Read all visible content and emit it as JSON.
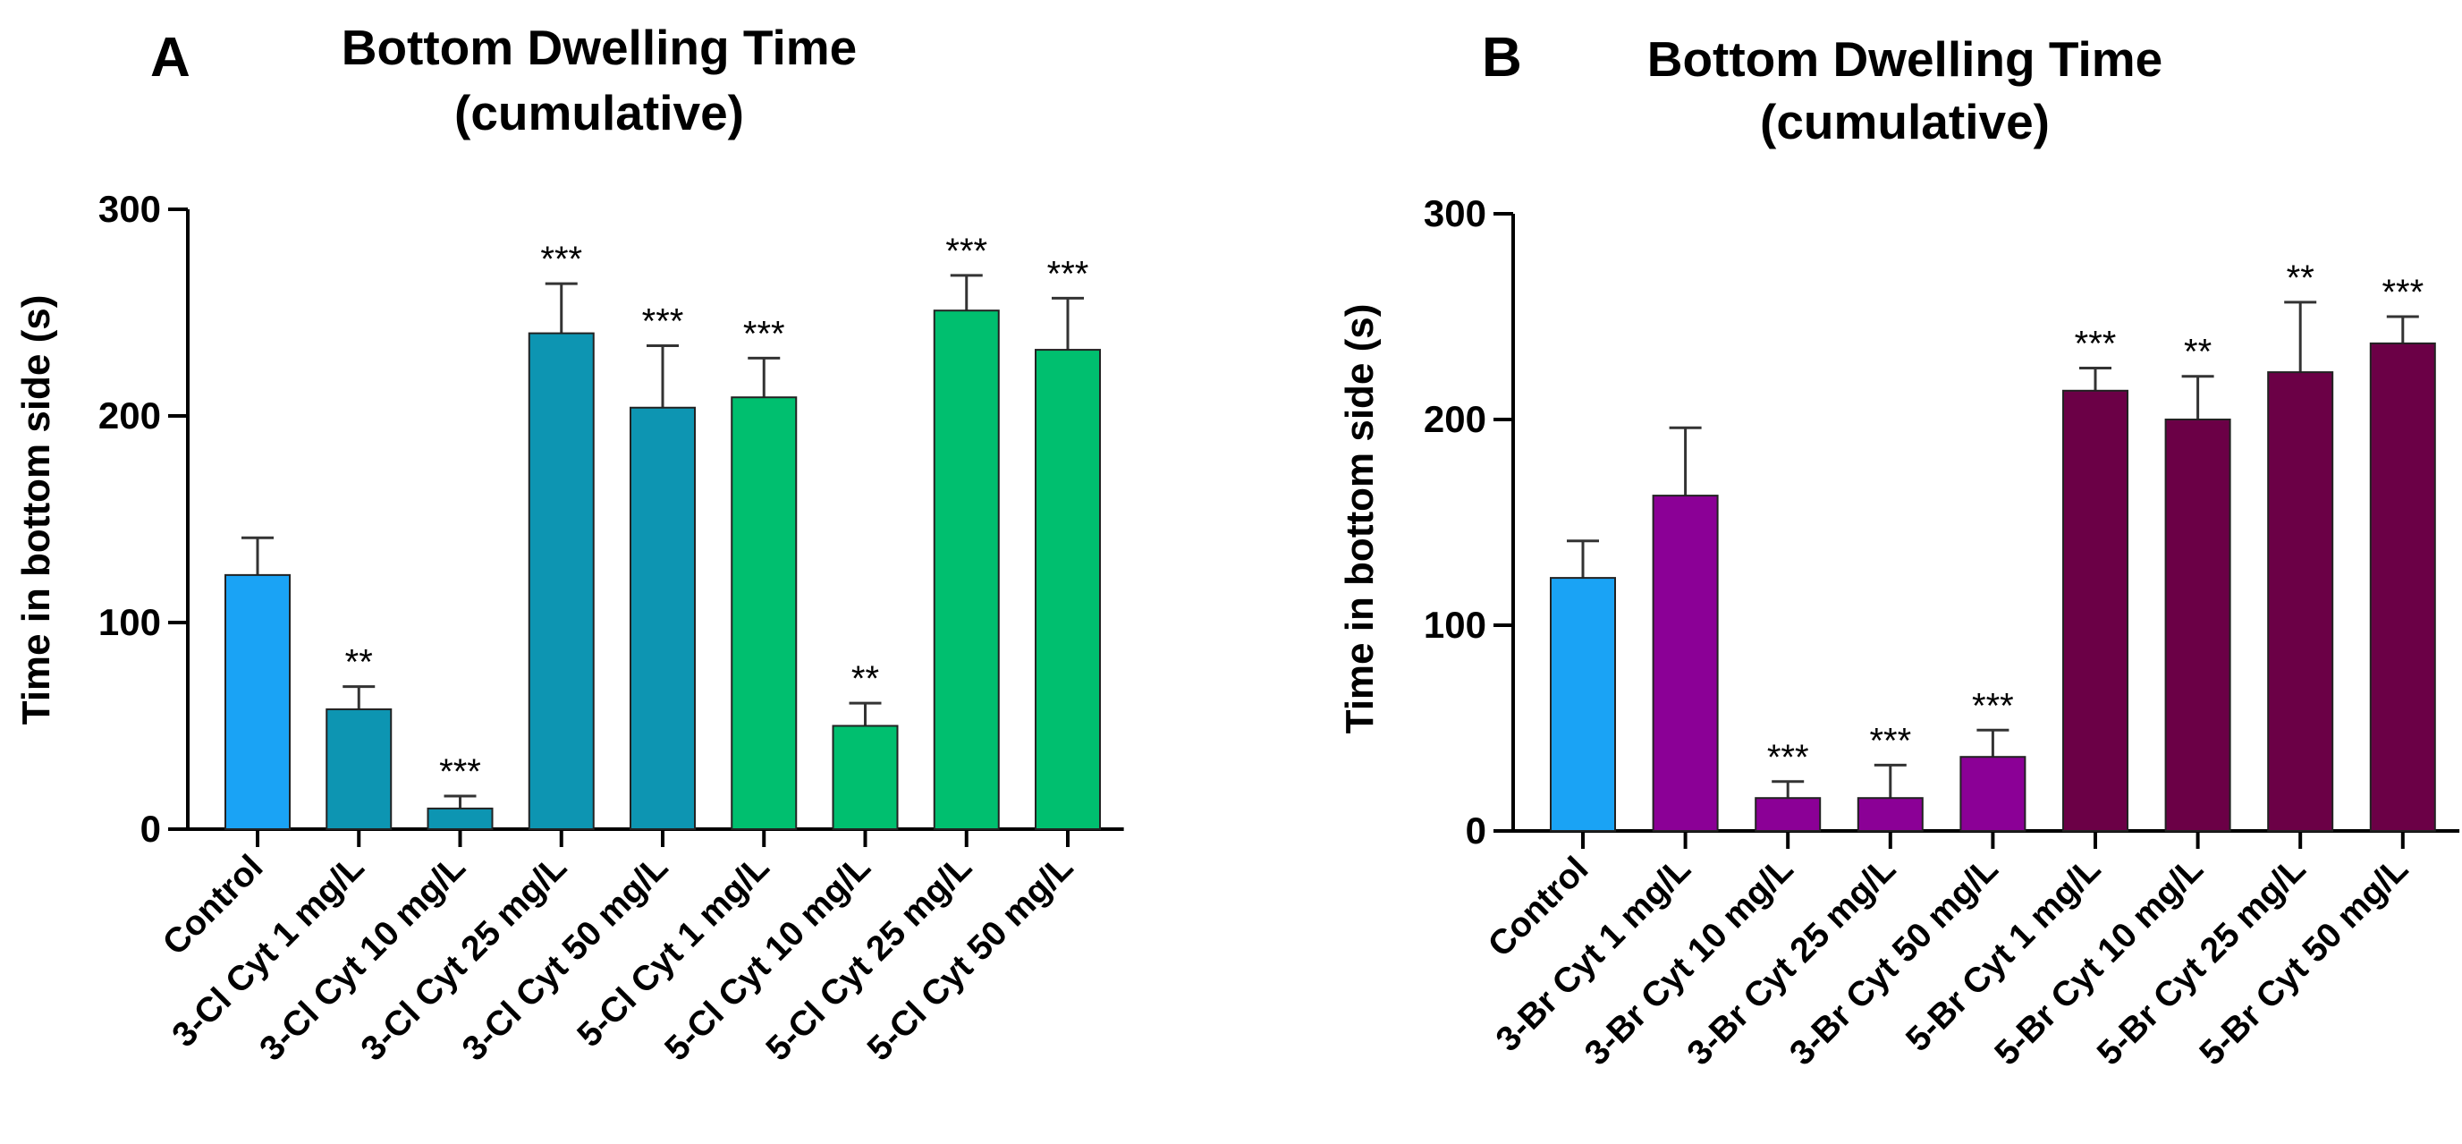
{
  "chart_data": [
    {
      "type": "bar",
      "panel": "A",
      "title_line1": "Bottom Dwelling Time",
      "title_line2": "(cumulative)",
      "xlabel": "",
      "ylabel": "Time in bottom side (s)",
      "ylim": [
        0,
        300
      ],
      "yticks": [
        "0",
        "100",
        "200",
        "300"
      ],
      "categories": [
        "Control",
        "3-Cl Cyt 1 mg/L",
        "3-Cl Cyt 10 mg/L",
        "3-Cl Cyt 25 mg/L",
        "3-Cl Cyt 50 mg/L",
        "5-Cl Cyt 1 mg/L",
        "5-Cl Cyt 10 mg/L",
        "5-Cl Cyt 25 mg/L",
        "5-Cl Cyt 50 mg/L"
      ],
      "values": [
        123,
        58,
        10,
        240,
        204,
        209,
        50,
        251,
        232
      ],
      "errors": [
        18,
        11,
        6,
        24,
        30,
        19,
        11,
        17,
        25
      ],
      "significance": [
        "",
        "**",
        "***",
        "***",
        "***",
        "***",
        "**",
        "***",
        "***"
      ],
      "colors": [
        "#1aa3f5",
        "#0d95b2",
        "#0d95b2",
        "#0d95b2",
        "#0d95b2",
        "#00bf6f",
        "#00bf6f",
        "#00bf6f",
        "#00bf6f"
      ],
      "grid": false
    },
    {
      "type": "bar",
      "panel": "B",
      "title_line1": "Bottom Dwelling Time",
      "title_line2": "(cumulative)",
      "xlabel": "",
      "ylabel": "Time in bottom side (s)",
      "ylim": [
        0,
        300
      ],
      "yticks": [
        "0",
        "100",
        "200",
        "300"
      ],
      "categories": [
        "Control",
        "3-Br Cyt 1 mg/L",
        "3-Br Cyt 10 mg/L",
        "3-Br Cyt 25 mg/L",
        "3-Br Cyt 50 mg/L",
        "5-Br Cyt 1 mg/L",
        "5-Br Cyt 10 mg/L",
        "5-Br Cyt 25 mg/L",
        "5-Br Cyt 50 mg/L"
      ],
      "values": [
        123,
        163,
        16,
        16,
        36,
        214,
        200,
        223,
        237
      ],
      "errors": [
        18,
        33,
        8,
        16,
        13,
        11,
        21,
        34,
        13
      ],
      "significance": [
        "",
        "",
        "***",
        "***",
        "***",
        "***",
        "**",
        "**",
        "***"
      ],
      "colors": [
        "#1aa3f5",
        "#8b0096",
        "#8b0096",
        "#8b0096",
        "#8b0096",
        "#6b0046",
        "#6b0046",
        "#6b0046",
        "#6b0046"
      ],
      "grid": false
    }
  ]
}
